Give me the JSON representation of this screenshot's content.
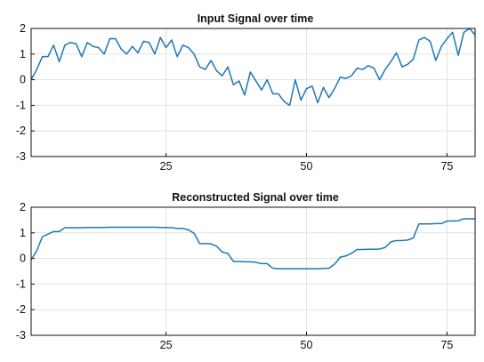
{
  "colors": {
    "series": "#1f77b4",
    "grid": "#e2e2e2",
    "frame": "#111111"
  },
  "chart_data": [
    {
      "type": "line",
      "title": "Input Signal over time",
      "xlabel": "",
      "ylabel": "",
      "xlim": [
        1,
        80
      ],
      "ylim": [
        -3,
        2
      ],
      "xticks": [
        25,
        50,
        75
      ],
      "yticks": [
        -3,
        -2,
        -1,
        0,
        1,
        2
      ],
      "grid": true,
      "series": [
        {
          "x": [
            1,
            2,
            3,
            4,
            5,
            6,
            7,
            8,
            9,
            10,
            11,
            12,
            13,
            14,
            15,
            16,
            17,
            18,
            19,
            20,
            21,
            22,
            23,
            24,
            25,
            26,
            27,
            28,
            29,
            30,
            31,
            32,
            33,
            34,
            35,
            36,
            37,
            38,
            39,
            40,
            41,
            42,
            43,
            44,
            45,
            46,
            47,
            48,
            49,
            50,
            51,
            52,
            53,
            54,
            55,
            56,
            57,
            58,
            59,
            60,
            61,
            62,
            63,
            64,
            65,
            66,
            67,
            68,
            69,
            70,
            71,
            72,
            73,
            74,
            75,
            76,
            77,
            78,
            79,
            80
          ],
          "values": [
            0.0,
            0.4,
            0.9,
            0.9,
            1.35,
            0.7,
            1.35,
            1.45,
            1.4,
            0.9,
            1.45,
            1.3,
            1.25,
            1.0,
            1.6,
            1.6,
            1.2,
            1.0,
            1.3,
            1.05,
            1.5,
            1.45,
            1.0,
            1.65,
            1.25,
            1.55,
            0.9,
            1.35,
            1.25,
            1.0,
            0.5,
            0.4,
            0.75,
            0.35,
            0.15,
            0.5,
            -0.2,
            -0.05,
            -0.6,
            0.3,
            -0.05,
            -0.4,
            0.0,
            -0.55,
            -0.55,
            -0.85,
            -1.0,
            0.0,
            -0.8,
            -0.35,
            -0.25,
            -0.9,
            -0.3,
            -0.7,
            -0.35,
            0.1,
            0.05,
            0.15,
            0.45,
            0.4,
            0.55,
            0.45,
            0.0,
            0.4,
            0.7,
            1.05,
            0.5,
            0.6,
            0.8,
            1.55,
            1.65,
            1.5,
            0.75,
            1.3,
            1.6,
            1.85,
            0.95,
            1.85,
            2.0,
            1.75
          ]
        }
      ]
    },
    {
      "type": "line",
      "title": "Reconstructed Signal over time",
      "xlabel": "",
      "ylabel": "",
      "xlim": [
        1,
        80
      ],
      "ylim": [
        -3,
        2
      ],
      "xticks": [
        25,
        50,
        75
      ],
      "yticks": [
        -3,
        -2,
        -1,
        0,
        1,
        2
      ],
      "grid": true,
      "series": [
        {
          "x": [
            1,
            2,
            3,
            4,
            5,
            6,
            7,
            8,
            9,
            10,
            11,
            12,
            13,
            14,
            15,
            16,
            17,
            18,
            19,
            20,
            21,
            22,
            23,
            24,
            25,
            26,
            27,
            28,
            29,
            30,
            31,
            32,
            33,
            34,
            35,
            36,
            37,
            38,
            39,
            40,
            41,
            42,
            43,
            44,
            45,
            46,
            47,
            48,
            49,
            50,
            51,
            52,
            53,
            54,
            55,
            56,
            57,
            58,
            59,
            60,
            61,
            62,
            63,
            64,
            65,
            66,
            67,
            68,
            69,
            70,
            71,
            72,
            73,
            74,
            75,
            76,
            77,
            78,
            79,
            80
          ],
          "values": [
            -0.05,
            0.3,
            0.85,
            0.95,
            1.05,
            1.05,
            1.2,
            1.2,
            1.2,
            1.2,
            1.21,
            1.21,
            1.21,
            1.21,
            1.22,
            1.22,
            1.22,
            1.22,
            1.22,
            1.22,
            1.22,
            1.22,
            1.22,
            1.21,
            1.21,
            1.2,
            1.17,
            1.17,
            1.12,
            0.98,
            0.58,
            0.58,
            0.57,
            0.48,
            0.25,
            0.2,
            -0.12,
            -0.12,
            -0.13,
            -0.13,
            -0.15,
            -0.2,
            -0.2,
            -0.38,
            -0.4,
            -0.4,
            -0.4,
            -0.4,
            -0.4,
            -0.4,
            -0.4,
            -0.4,
            -0.39,
            -0.38,
            -0.22,
            0.05,
            0.1,
            0.2,
            0.35,
            0.35,
            0.36,
            0.36,
            0.37,
            0.43,
            0.65,
            0.7,
            0.7,
            0.72,
            0.8,
            1.35,
            1.35,
            1.35,
            1.36,
            1.36,
            1.46,
            1.46,
            1.47,
            1.55,
            1.55,
            1.55
          ]
        }
      ]
    }
  ]
}
